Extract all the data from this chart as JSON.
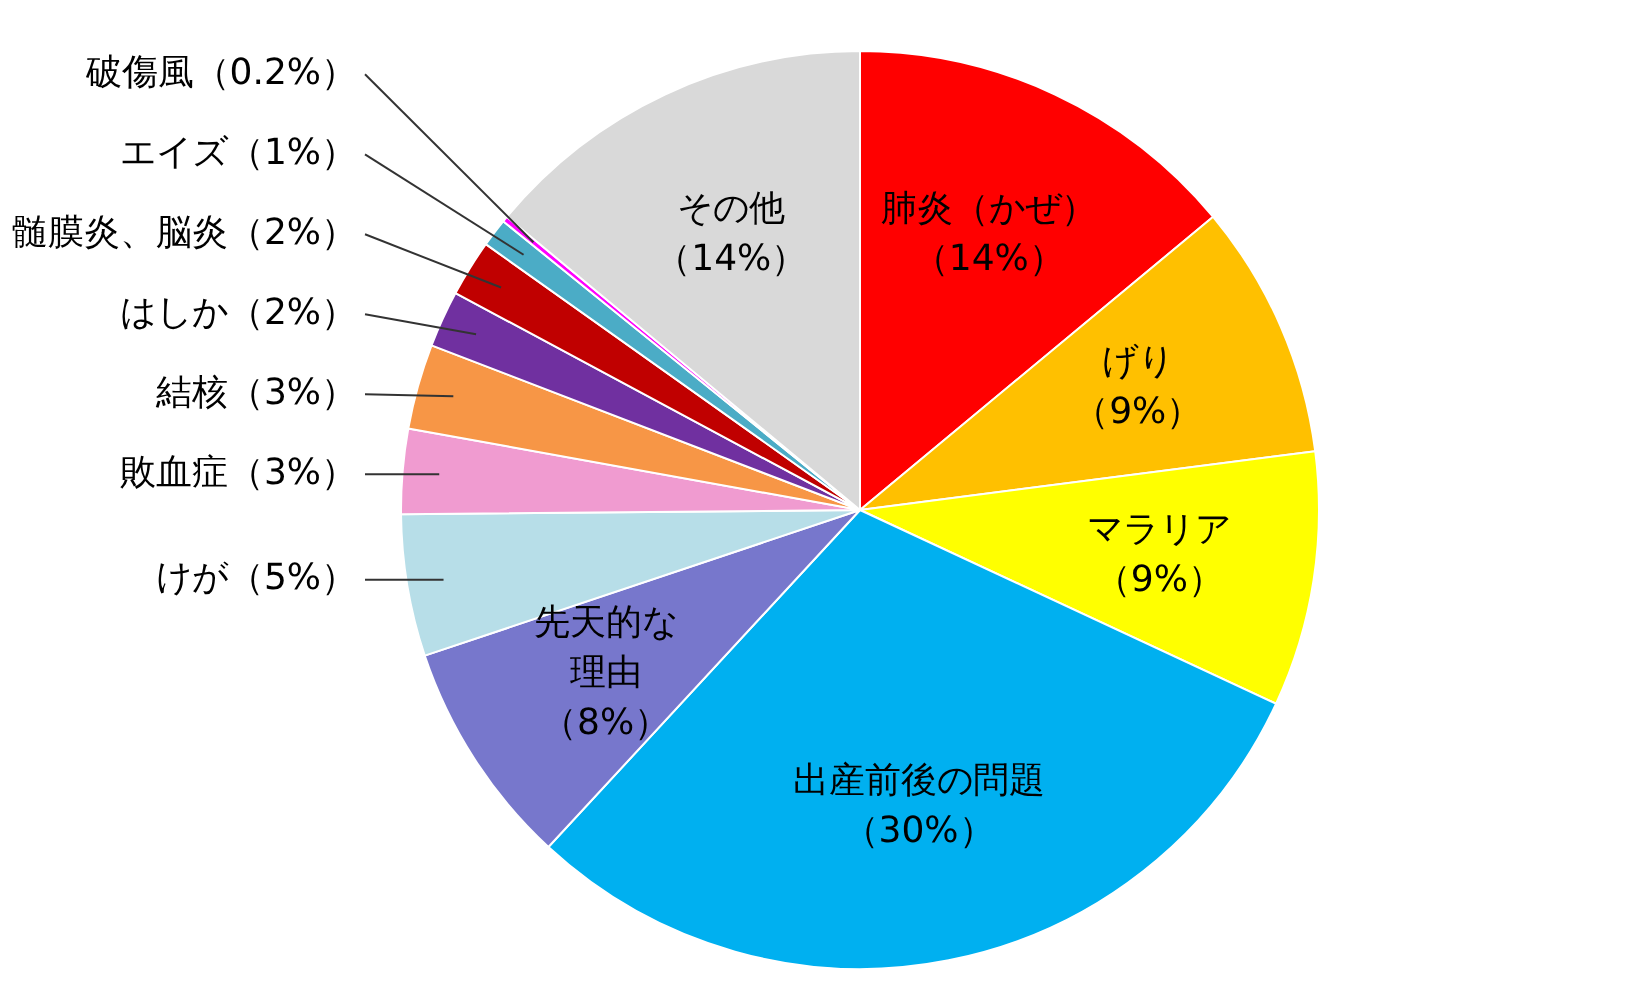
{
  "chart_data": {
    "type": "pie",
    "categories": [
      "肺炎（かぜ）",
      "げり",
      "マラリア",
      "出産前後の問題",
      "先天的な理由",
      "けが",
      "敗血症",
      "結核",
      "はしか",
      "髄膜炎、脳炎",
      "エイズ",
      "破傷風",
      "その他"
    ],
    "values": [
      14,
      9,
      9,
      30,
      8,
      5,
      3,
      3,
      2,
      2,
      1,
      0.2,
      14
    ],
    "value_labels": [
      "（14%）",
      "（9%）",
      "（9%）",
      "（30%）",
      "（8%）",
      "（5%）",
      "（3%）",
      "（3%）",
      "（2%）",
      "（2%）",
      "（1%）",
      "（0.2%）",
      "（14%）"
    ],
    "colors": [
      "#ff0000",
      "#ffc000",
      "#ffff00",
      "#00b0f0",
      "#7777cc",
      "#b7dee8",
      "#f09bd0",
      "#f79646",
      "#7030a0",
      "#c00000",
      "#4bacc6",
      "#ff00ff",
      "#d9d9d9"
    ],
    "legend": false
  }
}
